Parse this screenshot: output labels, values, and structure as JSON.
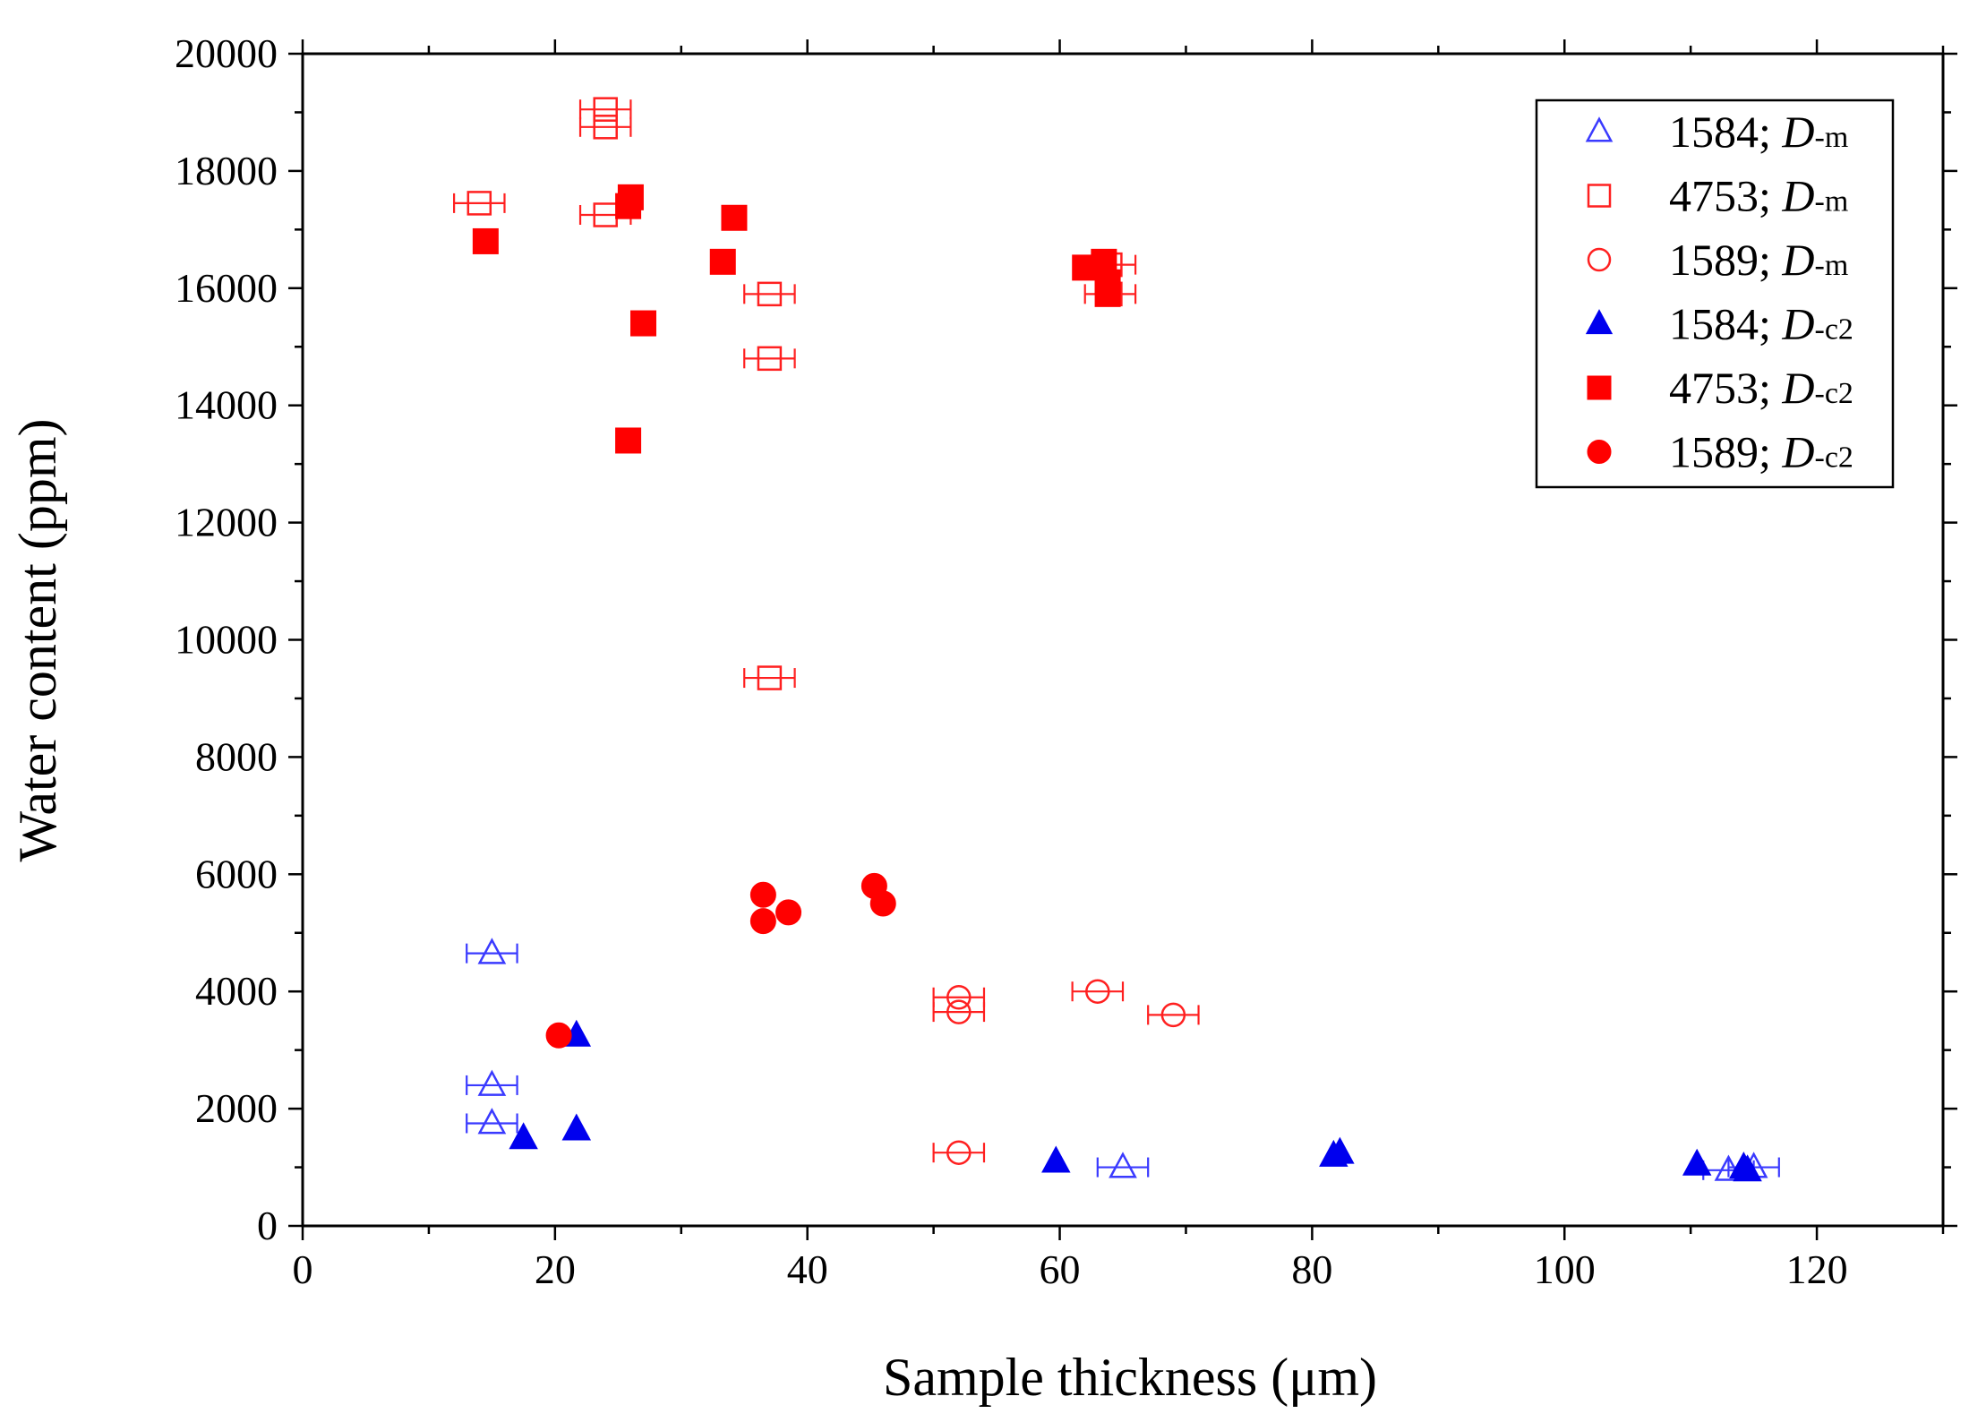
{
  "chart_data": {
    "type": "scatter",
    "title": "",
    "xlabel": "Sample thickness (μm)",
    "ylabel": "Water content (ppm)",
    "xlim": [
      0,
      130
    ],
    "ylim": [
      0,
      20000
    ],
    "x_ticks": [
      0,
      20,
      40,
      60,
      80,
      100,
      120
    ],
    "y_ticks": [
      0,
      2000,
      4000,
      6000,
      8000,
      10000,
      12000,
      14000,
      16000,
      18000,
      20000
    ],
    "grid": false,
    "legend_position": "top-right",
    "series": [
      {
        "name": "1584; D-m",
        "legend_num": "1584; ",
        "legend_D": "D",
        "legend_sub": "-m",
        "marker": "triangle",
        "filled": false,
        "color": "#3a3aff",
        "error_bars": true,
        "points": [
          [
            15,
            4650
          ],
          [
            15,
            2400
          ],
          [
            15,
            1750
          ],
          [
            65,
            1000
          ],
          [
            113,
            950
          ],
          [
            115,
            1000
          ]
        ]
      },
      {
        "name": "4753; D-m",
        "legend_num": "4753; ",
        "legend_D": "D",
        "legend_sub": "-m",
        "marker": "square",
        "filled": false,
        "color": "#ff2020",
        "error_bars": true,
        "points": [
          [
            24,
            19050
          ],
          [
            24,
            18750
          ],
          [
            14,
            17450
          ],
          [
            24,
            17250
          ],
          [
            37,
            15900
          ],
          [
            37,
            14800
          ],
          [
            37,
            9350
          ],
          [
            64,
            16400
          ],
          [
            64,
            15900
          ]
        ]
      },
      {
        "name": "1589; D-m",
        "legend_num": "1589; ",
        "legend_D": "D",
        "legend_sub": "-m",
        "marker": "circle",
        "filled": false,
        "color": "#ff2020",
        "error_bars": true,
        "points": [
          [
            52,
            3900
          ],
          [
            52,
            3650
          ],
          [
            63,
            4000
          ],
          [
            69,
            3600
          ],
          [
            52,
            1250
          ]
        ]
      },
      {
        "name": "1584; D-c2",
        "legend_num": "1584; ",
        "legend_D": "D",
        "legend_sub": "-c2",
        "marker": "triangle",
        "filled": true,
        "color": "#0000ee",
        "error_bars": false,
        "points": [
          [
            21.7,
            3250
          ],
          [
            17.5,
            1500
          ],
          [
            21.7,
            1650
          ],
          [
            59.7,
            1100
          ],
          [
            81.7,
            1200
          ],
          [
            82.2,
            1250
          ],
          [
            110.5,
            1050
          ],
          [
            114.2,
            1000
          ],
          [
            114.5,
            950
          ]
        ]
      },
      {
        "name": "4753; D-c2",
        "legend_num": "4753; ",
        "legend_D": "D",
        "legend_sub": "-c2",
        "marker": "square",
        "filled": true,
        "color": "#ff0000",
        "error_bars": false,
        "points": [
          [
            14.5,
            16800
          ],
          [
            26,
            17550
          ],
          [
            25.8,
            17400
          ],
          [
            34.2,
            17200
          ],
          [
            33.3,
            16450
          ],
          [
            27,
            15400
          ],
          [
            25.8,
            13400
          ],
          [
            62,
            16350
          ],
          [
            63.5,
            16450
          ],
          [
            63.8,
            16100
          ],
          [
            63.8,
            15900
          ]
        ]
      },
      {
        "name": "1589; D-c2",
        "legend_num": "1589; ",
        "legend_D": "D",
        "legend_sub": "-c2",
        "marker": "circle",
        "filled": true,
        "color": "#ff0000",
        "error_bars": false,
        "points": [
          [
            20.3,
            3250
          ],
          [
            36.5,
            5650
          ],
          [
            36.5,
            5200
          ],
          [
            38.5,
            5350
          ],
          [
            45.3,
            5800
          ],
          [
            46,
            5500
          ]
        ]
      }
    ]
  }
}
